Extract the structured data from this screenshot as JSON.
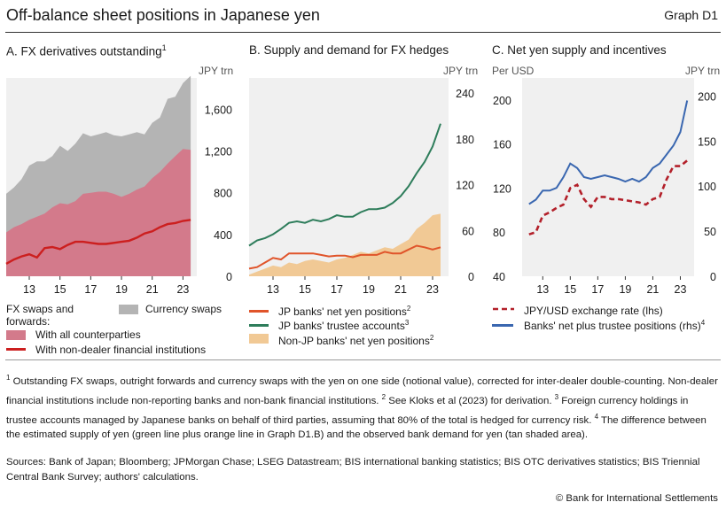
{
  "header": {
    "title": "Off-balance sheet positions in Japanese yen",
    "graph_id": "Graph D1"
  },
  "colors": {
    "grey": "#b4b4b4",
    "pink": "#d37a8b",
    "red": "#cc1f1f",
    "green": "#2e7d5b",
    "orange": "#e0542a",
    "tan": "#f1c995",
    "blue": "#3a67b0",
    "darkred": "#b3202a"
  },
  "chart_data": [
    {
      "type": "area",
      "title": "A. FX derivatives outstanding",
      "title_sup": "1",
      "ylabel": "JPY trn",
      "ylim": [
        0,
        1900
      ],
      "x_ticks": [
        "13",
        "15",
        "17",
        "19",
        "21",
        "23"
      ],
      "y_ticks": [
        "0",
        "400",
        "800",
        "1,200",
        "1,600"
      ],
      "x": [
        2011.5,
        2012.0,
        2012.5,
        2013.0,
        2013.5,
        2014.0,
        2014.5,
        2015.0,
        2015.5,
        2016.0,
        2016.5,
        2017.0,
        2017.5,
        2018.0,
        2018.5,
        2019.0,
        2019.5,
        2020.0,
        2020.5,
        2021.0,
        2021.5,
        2022.0,
        2022.5,
        2023.0,
        2023.5
      ],
      "series": [
        {
          "name": "Currency swaps",
          "values": [
            790,
            850,
            930,
            1060,
            1100,
            1100,
            1150,
            1250,
            1200,
            1270,
            1370,
            1340,
            1360,
            1380,
            1350,
            1340,
            1360,
            1380,
            1360,
            1470,
            1520,
            1700,
            1720,
            1850,
            1920
          ]
        },
        {
          "name": "With all counterparties",
          "values": [
            420,
            470,
            500,
            540,
            570,
            600,
            660,
            700,
            690,
            720,
            790,
            800,
            810,
            810,
            790,
            760,
            790,
            830,
            860,
            940,
            1000,
            1080,
            1150,
            1220,
            1210
          ]
        },
        {
          "name": "With non-dealer financial institutions",
          "values": [
            120,
            160,
            190,
            210,
            180,
            270,
            280,
            260,
            300,
            330,
            330,
            320,
            310,
            310,
            320,
            330,
            340,
            370,
            410,
            430,
            470,
            500,
            510,
            530,
            540
          ]
        }
      ]
    },
    {
      "type": "line",
      "title": "B. Supply and demand for FX hedges",
      "ylabel": "JPY trn",
      "ylim": [
        0,
        260
      ],
      "x_ticks": [
        "13",
        "15",
        "17",
        "19",
        "21",
        "23"
      ],
      "y_ticks": [
        "0",
        "60",
        "120",
        "180",
        "240"
      ],
      "x": [
        2011.5,
        2012.0,
        2012.5,
        2013.0,
        2013.5,
        2014.0,
        2014.5,
        2015.0,
        2015.5,
        2016.0,
        2016.5,
        2017.0,
        2017.5,
        2018.0,
        2018.5,
        2019.0,
        2019.5,
        2020.0,
        2020.5,
        2021.0,
        2021.5,
        2022.0,
        2022.5,
        2023.0,
        2023.5
      ],
      "series": [
        {
          "name": "JP banks' net yen positions",
          "name_sup": "2",
          "values": [
            10,
            12,
            18,
            24,
            22,
            30,
            30,
            30,
            30,
            28,
            26,
            27,
            27,
            25,
            28,
            28,
            28,
            32,
            30,
            30,
            35,
            40,
            38,
            35,
            38
          ]
        },
        {
          "name": "JP banks' trustee accounts",
          "name_sup": "3",
          "values": [
            40,
            47,
            50,
            55,
            62,
            70,
            72,
            70,
            74,
            72,
            75,
            80,
            78,
            78,
            84,
            88,
            88,
            90,
            96,
            105,
            118,
            135,
            150,
            170,
            200
          ]
        },
        {
          "name": "Non-JP banks' net yen positions",
          "name_sup": "2",
          "values": [
            2,
            6,
            10,
            14,
            12,
            18,
            16,
            20,
            22,
            20,
            18,
            22,
            24,
            28,
            32,
            30,
            34,
            38,
            36,
            42,
            48,
            62,
            70,
            80,
            82
          ]
        }
      ]
    },
    {
      "type": "line",
      "title": "C. Net yen supply and incentives",
      "ylabel_left": "Per USD",
      "ylabel_right": "JPY trn",
      "ylim_left": [
        40,
        220
      ],
      "ylim_right": [
        0,
        220
      ],
      "x_ticks": [
        "13",
        "15",
        "17",
        "19",
        "21",
        "23"
      ],
      "y_ticks_left": [
        "40",
        "80",
        "120",
        "160",
        "200"
      ],
      "y_ticks_right": [
        "0",
        "50",
        "100",
        "150",
        "200"
      ],
      "x": [
        2012.0,
        2012.5,
        2013.0,
        2013.5,
        2014.0,
        2014.5,
        2015.0,
        2015.5,
        2016.0,
        2016.5,
        2017.0,
        2017.5,
        2018.0,
        2018.5,
        2019.0,
        2019.5,
        2020.0,
        2020.5,
        2021.0,
        2021.5,
        2022.0,
        2022.5,
        2023.0,
        2023.5
      ],
      "series": [
        {
          "name": "JPY/USD exchange rate (lhs)",
          "axis": "left",
          "values": [
            78,
            80,
            95,
            98,
            102,
            105,
            120,
            123,
            110,
            103,
            112,
            112,
            110,
            110,
            109,
            108,
            107,
            105,
            110,
            112,
            128,
            140,
            140,
            145
          ]
        },
        {
          "name": "Banks' net plus trustee positions (rhs)",
          "name_sup": "4",
          "axis": "right",
          "values": [
            80,
            85,
            95,
            95,
            98,
            110,
            125,
            120,
            110,
            108,
            110,
            112,
            110,
            108,
            105,
            108,
            105,
            110,
            120,
            125,
            135,
            145,
            160,
            195
          ]
        }
      ]
    }
  ],
  "panelA": {
    "title": "A. FX derivatives outstanding",
    "sup": "1",
    "unit": "JPY trn",
    "legend": {
      "heading1": "FX swaps and",
      "heading2": "forwards:",
      "all": "With all counterparties",
      "nondealer": "With non-dealer financial institutions",
      "swaps": "Currency swaps"
    }
  },
  "panelB": {
    "title": "B. Supply and demand for FX hedges",
    "unit": "JPY trn",
    "legend": {
      "net": "JP banks' net yen positions",
      "trustee": "JP banks' trustee accounts",
      "nonjp": "Non-JP banks' net yen positions",
      "sup2": "2",
      "sup3": "3"
    }
  },
  "panelC": {
    "title": "C. Net yen supply and incentives",
    "unit_left": "Per USD",
    "unit_right": "JPY trn",
    "legend": {
      "fx": "JPY/USD exchange rate (lhs)",
      "banks": "Banks' net plus trustee positions (rhs)",
      "sup4": "4"
    }
  },
  "footnotes": {
    "n1_mark": "1",
    "n1": "Outstanding FX swaps, outright forwards and currency swaps with the yen on one side (notional value), corrected for inter-dealer double-counting. Non-dealer financial institutions include non-reporting banks and non-bank financial institutions.",
    "n2_mark": "2",
    "n2": "See Kloks et al (2023) for derivation.",
    "n3_mark": "3",
    "n3": "Foreign currency holdings in trustee accounts managed by Japanese banks on behalf of third parties, assuming that 80% of the total is hedged for currency risk.",
    "n4_mark": "4",
    "n4": "The difference between the estimated supply of yen (green line plus orange line in Graph D1.B) and the observed bank demand for yen (tan shaded area)."
  },
  "sources": "Sources: Bank of Japan; Bloomberg; JPMorgan Chase; LSEG Datastream; BIS international banking statistics; BIS OTC derivatives statistics; BIS Triennial Central Bank Survey; authors' calculations.",
  "copyright": "© Bank for International Settlements"
}
